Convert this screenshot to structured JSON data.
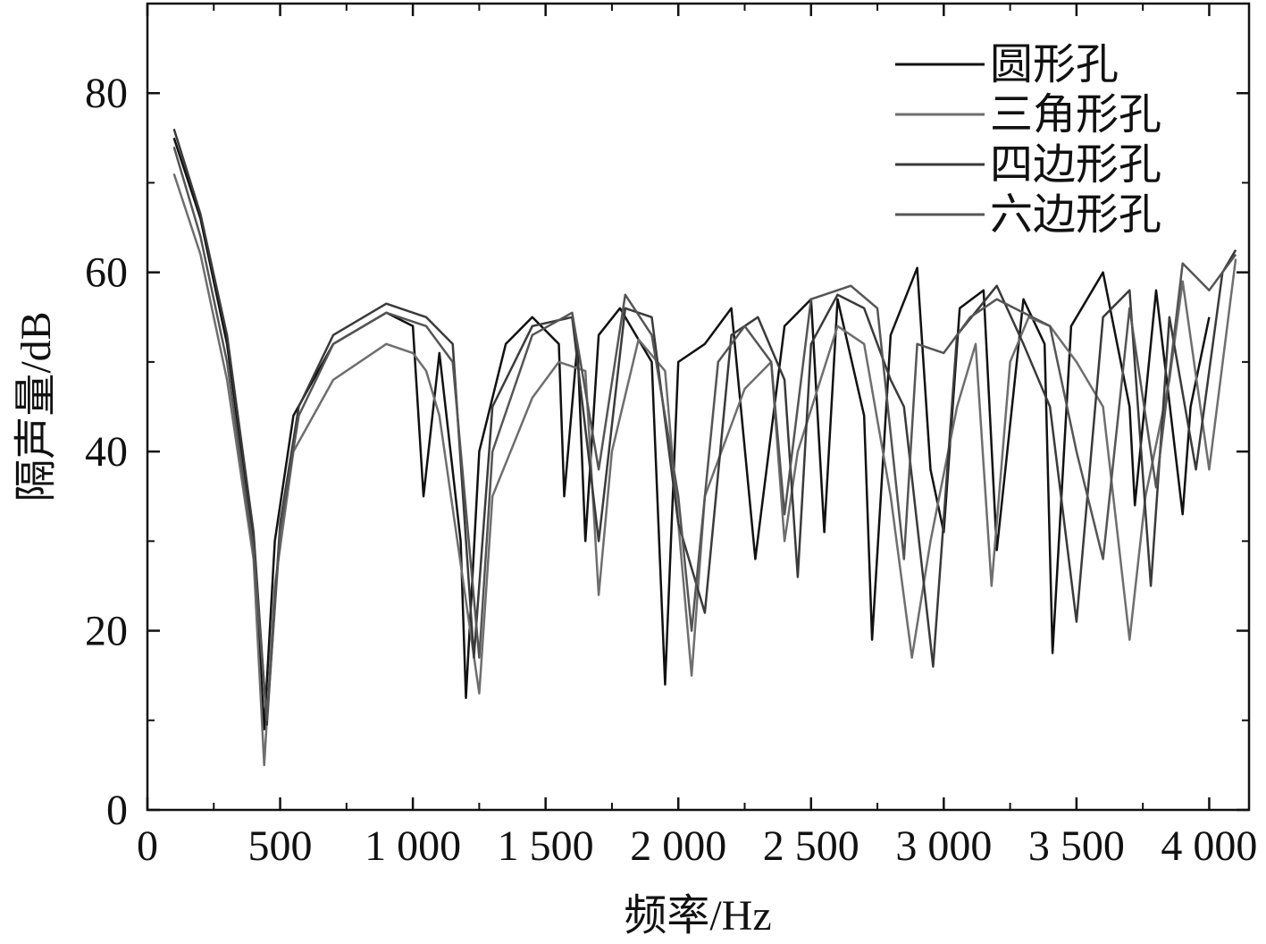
{
  "chart_data": {
    "type": "line",
    "title": "",
    "xlabel": "频率/Hz",
    "ylabel": "隔声量/dB",
    "xlim": [
      0,
      4150
    ],
    "ylim": [
      0,
      90
    ],
    "x_ticks": [
      0,
      500,
      1000,
      1500,
      2000,
      2500,
      3000,
      3500,
      4000
    ],
    "x_tick_labels": [
      "0",
      "500",
      "1 000",
      "1 500",
      "2 000",
      "2 500",
      "3 000",
      "3 500",
      "4 000"
    ],
    "y_ticks": [
      0,
      20,
      40,
      60,
      80
    ],
    "y_tick_labels": [
      "0",
      "20",
      "40",
      "60",
      "80"
    ],
    "grid": false,
    "legend_position": "top-right",
    "series": [
      {
        "name": "圆形孔",
        "color": "#111111",
        "points": [
          [
            100,
            75
          ],
          [
            200,
            66
          ],
          [
            300,
            52
          ],
          [
            400,
            30
          ],
          [
            440,
            9
          ],
          [
            480,
            30
          ],
          [
            550,
            44
          ],
          [
            700,
            52
          ],
          [
            900,
            55.5
          ],
          [
            1000,
            54
          ],
          [
            1040,
            35
          ],
          [
            1100,
            51
          ],
          [
            1180,
            30
          ],
          [
            1200,
            12.5
          ],
          [
            1250,
            40
          ],
          [
            1350,
            52
          ],
          [
            1450,
            55
          ],
          [
            1550,
            52
          ],
          [
            1570,
            35
          ],
          [
            1620,
            52
          ],
          [
            1650,
            30
          ],
          [
            1700,
            53
          ],
          [
            1780,
            56
          ],
          [
            1900,
            50
          ],
          [
            1950,
            14
          ],
          [
            2000,
            50
          ],
          [
            2100,
            52
          ],
          [
            2200,
            56
          ],
          [
            2290,
            28
          ],
          [
            2400,
            54
          ],
          [
            2500,
            57
          ],
          [
            2550,
            31
          ],
          [
            2600,
            57
          ],
          [
            2700,
            44
          ],
          [
            2730,
            19
          ],
          [
            2800,
            53
          ],
          [
            2900,
            60.5
          ],
          [
            2950,
            38
          ],
          [
            3000,
            31
          ],
          [
            3060,
            56
          ],
          [
            3150,
            58
          ],
          [
            3200,
            29
          ],
          [
            3300,
            57
          ],
          [
            3380,
            52
          ],
          [
            3410,
            17.5
          ],
          [
            3480,
            54
          ],
          [
            3600,
            60
          ],
          [
            3700,
            45
          ],
          [
            3720,
            34
          ],
          [
            3800,
            58
          ],
          [
            3900,
            33
          ],
          [
            3930,
            45
          ],
          [
            4000,
            55
          ]
        ]
      },
      {
        "name": "三角形孔",
        "color": "#6e6e6e",
        "points": [
          [
            100,
            71
          ],
          [
            200,
            62
          ],
          [
            300,
            48
          ],
          [
            400,
            28
          ],
          [
            440,
            5
          ],
          [
            480,
            25
          ],
          [
            550,
            40
          ],
          [
            700,
            48
          ],
          [
            900,
            52
          ],
          [
            1000,
            51
          ],
          [
            1050,
            49
          ],
          [
            1100,
            44
          ],
          [
            1250,
            13
          ],
          [
            1300,
            35
          ],
          [
            1450,
            46
          ],
          [
            1550,
            50
          ],
          [
            1650,
            49
          ],
          [
            1700,
            24
          ],
          [
            1750,
            40
          ],
          [
            1850,
            52.5
          ],
          [
            1950,
            49
          ],
          [
            2050,
            15
          ],
          [
            2100,
            35
          ],
          [
            2250,
            47
          ],
          [
            2350,
            50
          ],
          [
            2400,
            30
          ],
          [
            2450,
            40
          ],
          [
            2600,
            54
          ],
          [
            2700,
            52
          ],
          [
            2800,
            35
          ],
          [
            2880,
            17
          ],
          [
            2950,
            30
          ],
          [
            3050,
            45
          ],
          [
            3120,
            52
          ],
          [
            3180,
            25
          ],
          [
            3250,
            50
          ],
          [
            3320,
            55
          ],
          [
            3400,
            54
          ],
          [
            3500,
            50
          ],
          [
            3600,
            45
          ],
          [
            3700,
            19
          ],
          [
            3760,
            35
          ],
          [
            3850,
            48
          ],
          [
            3900,
            59
          ],
          [
            4000,
            38
          ],
          [
            4100,
            61.5
          ]
        ]
      },
      {
        "name": "四边形孔",
        "color": "#3a3a3a",
        "points": [
          [
            100,
            76
          ],
          [
            200,
            66.5
          ],
          [
            300,
            53
          ],
          [
            400,
            31
          ],
          [
            450,
            9.5
          ],
          [
            500,
            32
          ],
          [
            570,
            45
          ],
          [
            700,
            53
          ],
          [
            900,
            56.5
          ],
          [
            1050,
            55
          ],
          [
            1150,
            52
          ],
          [
            1230,
            17
          ],
          [
            1300,
            45
          ],
          [
            1450,
            54
          ],
          [
            1600,
            55
          ],
          [
            1700,
            30
          ],
          [
            1800,
            56
          ],
          [
            1900,
            55
          ],
          [
            2000,
            32
          ],
          [
            2100,
            22
          ],
          [
            2200,
            53
          ],
          [
            2300,
            55
          ],
          [
            2400,
            48
          ],
          [
            2450,
            26
          ],
          [
            2500,
            52
          ],
          [
            2600,
            57.5
          ],
          [
            2700,
            56
          ],
          [
            2800,
            48
          ],
          [
            2850,
            45
          ],
          [
            2960,
            16
          ],
          [
            3050,
            53
          ],
          [
            3200,
            58.5
          ],
          [
            3300,
            52
          ],
          [
            3400,
            45
          ],
          [
            3500,
            21
          ],
          [
            3600,
            55
          ],
          [
            3700,
            58
          ],
          [
            3780,
            25
          ],
          [
            3850,
            55
          ],
          [
            3950,
            38
          ],
          [
            4050,
            60
          ],
          [
            4100,
            62.5
          ]
        ]
      },
      {
        "name": "六边形孔",
        "color": "#555555",
        "points": [
          [
            100,
            74
          ],
          [
            200,
            64
          ],
          [
            300,
            50
          ],
          [
            400,
            29
          ],
          [
            450,
            10
          ],
          [
            500,
            31
          ],
          [
            570,
            44
          ],
          [
            700,
            52
          ],
          [
            900,
            55.5
          ],
          [
            1050,
            54
          ],
          [
            1150,
            50
          ],
          [
            1250,
            17
          ],
          [
            1300,
            40
          ],
          [
            1450,
            53
          ],
          [
            1600,
            55.5
          ],
          [
            1700,
            38
          ],
          [
            1800,
            57.5
          ],
          [
            1900,
            53
          ],
          [
            2000,
            35
          ],
          [
            2050,
            20
          ],
          [
            2150,
            50
          ],
          [
            2250,
            54
          ],
          [
            2350,
            50
          ],
          [
            2400,
            33
          ],
          [
            2500,
            57
          ],
          [
            2650,
            58.5
          ],
          [
            2750,
            56
          ],
          [
            2850,
            28
          ],
          [
            2900,
            52
          ],
          [
            3000,
            51
          ],
          [
            3100,
            55
          ],
          [
            3200,
            57
          ],
          [
            3300,
            55.5
          ],
          [
            3400,
            54
          ],
          [
            3500,
            40
          ],
          [
            3600,
            28
          ],
          [
            3700,
            56
          ],
          [
            3800,
            36
          ],
          [
            3900,
            61
          ],
          [
            4000,
            58
          ],
          [
            4100,
            62
          ]
        ]
      }
    ]
  }
}
